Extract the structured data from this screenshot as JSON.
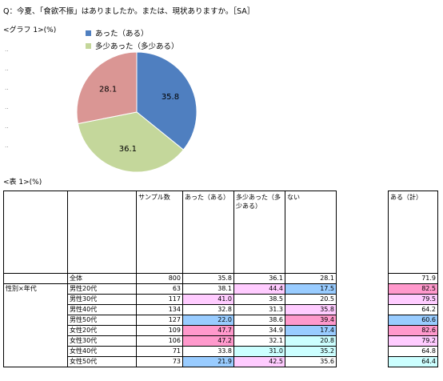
{
  "question": "Q：今夏、「食欲不振」はありましたか。または、現状ありますか。［SA］",
  "graph_label": "<グラフ 1>(%)",
  "table_label": "<表 1>(%)",
  "colors": {
    "aru": "#4f7fc0",
    "tashou": "#c4d79b",
    "nai": "#da9694"
  },
  "chart_data": {
    "type": "pie",
    "legend": [
      "あった（ある）",
      "多少あった（多少ある）"
    ],
    "legend_position": "top",
    "slices": [
      {
        "label": "あった（ある）",
        "value": 35.8
      },
      {
        "label": "多少あった（多少ある）",
        "value": 36.1
      },
      {
        "label": "ない",
        "value": 28.1
      }
    ]
  },
  "table": {
    "headers": {
      "sample": "サンプル数",
      "aru": "あった（ある）",
      "tashou": "多少あった（多少ある）",
      "nai": "ない",
      "aru_total": "ある（計）"
    },
    "group_label": "性別×年代",
    "rows": [
      {
        "label": "全体",
        "n": "800",
        "aru": "35.8",
        "tashou": "36.1",
        "nai": "28.1",
        "total": "71.9"
      },
      {
        "label": "男性20代",
        "n": "63",
        "aru": "38.1",
        "tashou": "44.4",
        "nai": "17.5",
        "total": "82.5"
      },
      {
        "label": "男性30代",
        "n": "117",
        "aru": "41.0",
        "tashou": "38.5",
        "nai": "20.5",
        "total": "79.5"
      },
      {
        "label": "男性40代",
        "n": "134",
        "aru": "32.8",
        "tashou": "31.3",
        "nai": "35.8",
        "total": "64.2"
      },
      {
        "label": "男性50代",
        "n": "127",
        "aru": "22.0",
        "tashou": "38.6",
        "nai": "39.4",
        "total": "60.6"
      },
      {
        "label": "女性20代",
        "n": "109",
        "aru": "47.7",
        "tashou": "34.9",
        "nai": "17.4",
        "total": "82.6"
      },
      {
        "label": "女性30代",
        "n": "106",
        "aru": "47.2",
        "tashou": "32.1",
        "nai": "20.8",
        "total": "79.2"
      },
      {
        "label": "女性40代",
        "n": "71",
        "aru": "33.8",
        "tashou": "31.0",
        "nai": "35.2",
        "total": "64.8"
      },
      {
        "label": "女性50代",
        "n": "73",
        "aru": "21.9",
        "tashou": "42.5",
        "nai": "35.6",
        "total": "64.4"
      }
    ],
    "cell_colors": {
      "1": {
        "tashou": "#ffccff",
        "nai": "#99ccff",
        "total": "#ff99cc"
      },
      "2": {
        "aru": "#ffccff",
        "total": "#ffccff"
      },
      "3": {
        "nai": "#ffccff"
      },
      "4": {
        "aru": "#99ccff",
        "nai": "#ff99cc",
        "total": "#99ccff"
      },
      "5": {
        "aru": "#ff99cc",
        "nai": "#99ccff",
        "total": "#ff99cc"
      },
      "6": {
        "aru": "#ff99cc",
        "nai": "#ccffff",
        "total": "#ffccff"
      },
      "7": {
        "tashou": "#ccffff",
        "nai": "#ccffff"
      },
      "8": {
        "aru": "#99ccff",
        "tashou": "#ffccff",
        "total": "#ccffff"
      }
    }
  }
}
